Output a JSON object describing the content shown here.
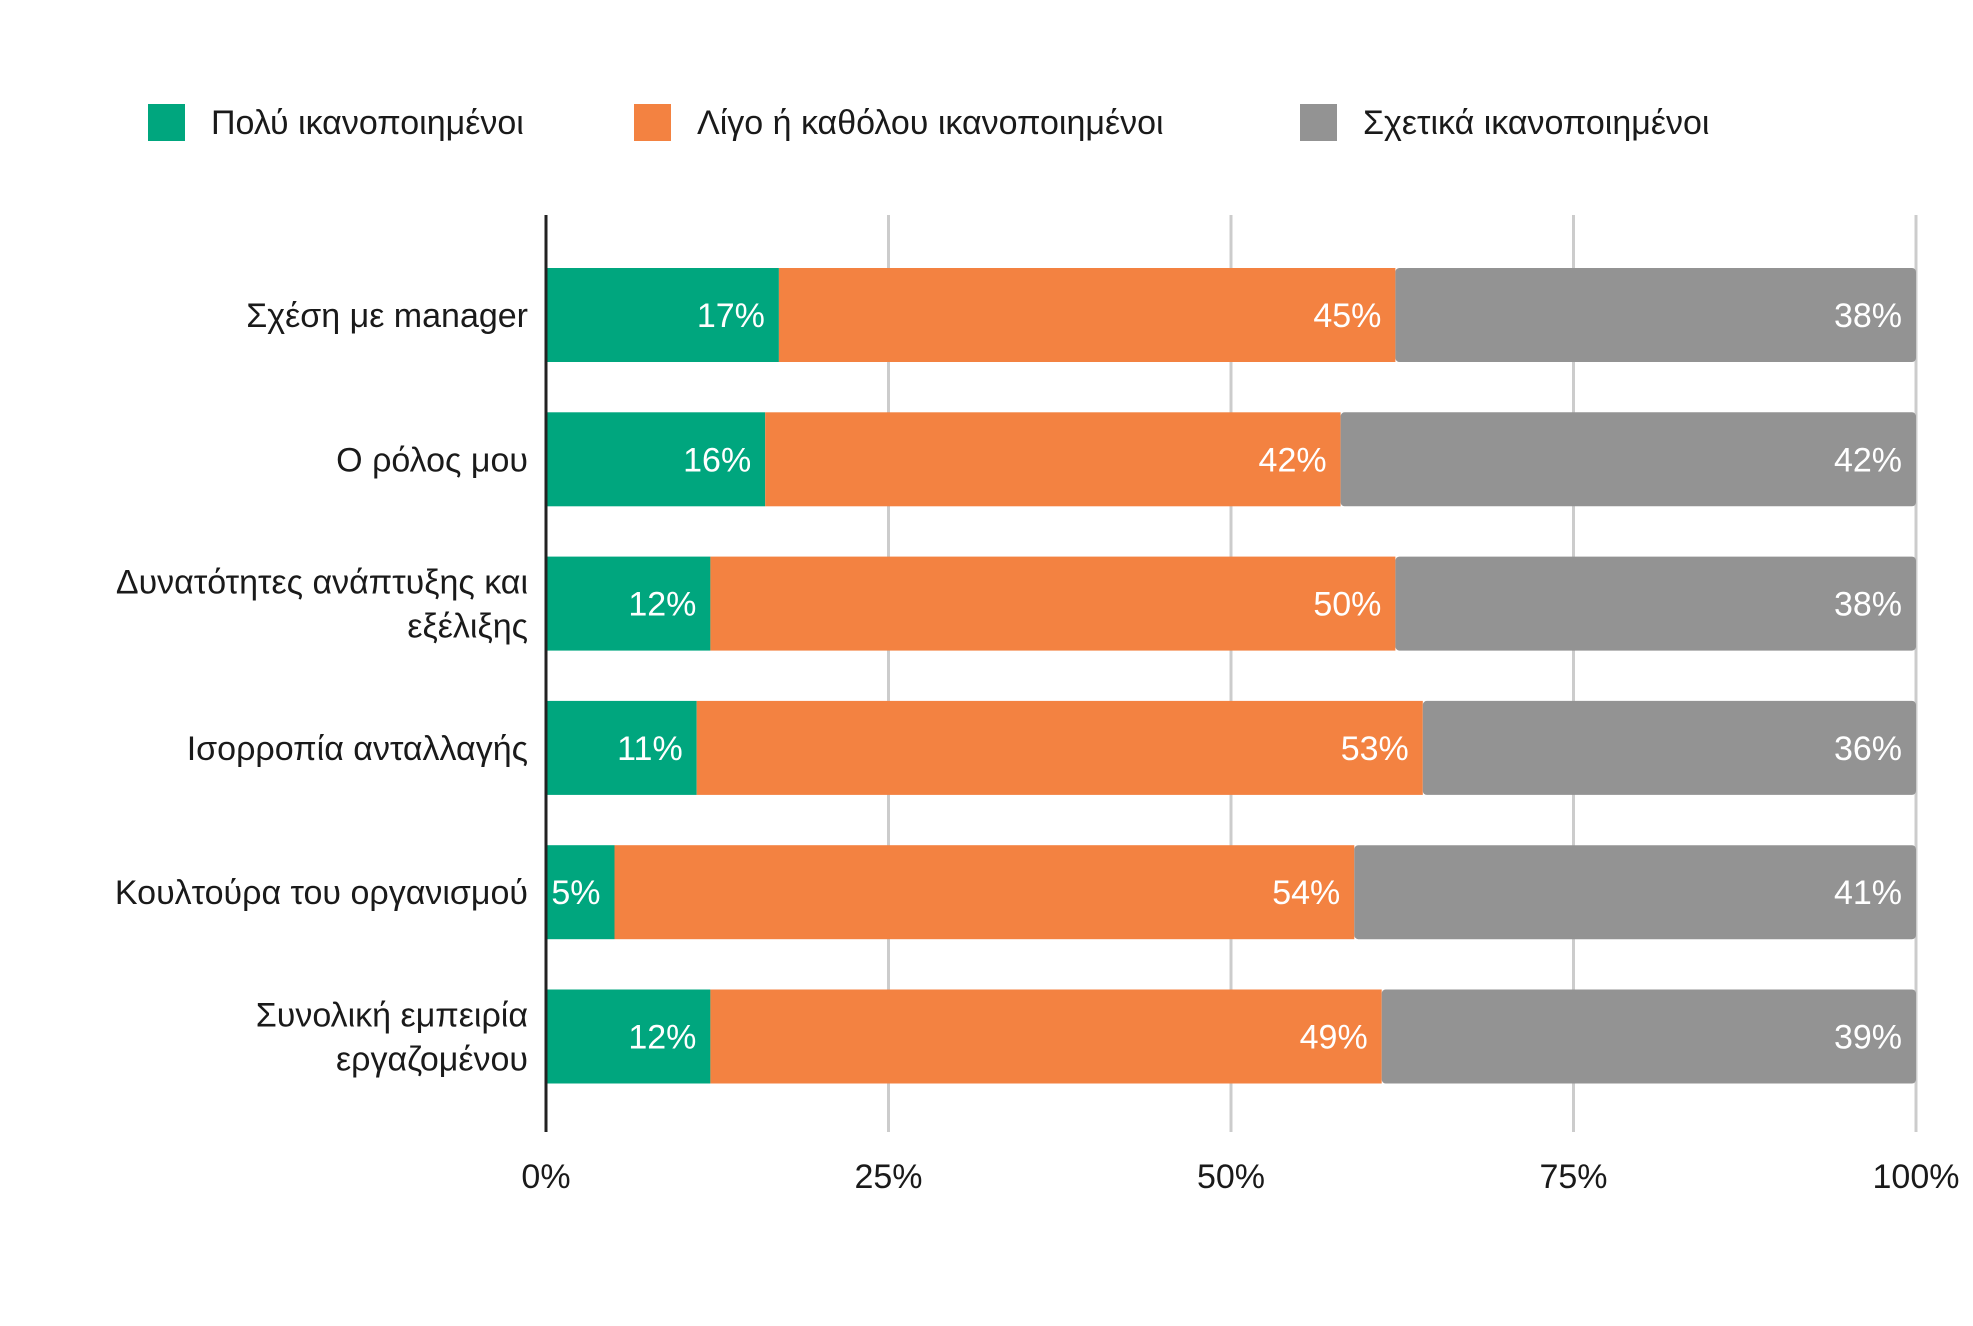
{
  "chart_data": {
    "type": "bar",
    "orientation": "horizontal",
    "stacked": true,
    "title": "",
    "xlabel": "",
    "ylabel": "",
    "xlim": [
      0,
      100
    ],
    "x_ticks": [
      {
        "value": 0,
        "label": "0%"
      },
      {
        "value": 25,
        "label": "25%"
      },
      {
        "value": 50,
        "label": "50%"
      },
      {
        "value": 75,
        "label": "75%"
      },
      {
        "value": 100,
        "label": "100%"
      }
    ],
    "grid": true,
    "legend_position": "top",
    "categories": [
      [
        "Σχέση με manager"
      ],
      [
        "Ο ρόλος μου"
      ],
      [
        "Δυνατότητες ανάπτυξης και",
        "εξέλιξης"
      ],
      [
        "Ισορροπία ανταλλαγής"
      ],
      [
        "Κουλτούρα του οργανισμού"
      ],
      [
        "Συνολική εμπειρία",
        "εργαζομένου"
      ]
    ],
    "series": [
      {
        "name": "Πολύ ικανοποιημένοι",
        "color": "#00a67e",
        "values": [
          17,
          16,
          12,
          11,
          5,
          12
        ],
        "labels": [
          "17%",
          "16%",
          "12%",
          "11%",
          "5%",
          "12%"
        ]
      },
      {
        "name": "Λίγο ή καθόλου ικανοποιημένοι",
        "color": "#f38241",
        "values": [
          45,
          42,
          50,
          53,
          54,
          49
        ],
        "labels": [
          "45%",
          "42%",
          "50%",
          "53%",
          "54%",
          "49%"
        ]
      },
      {
        "name": "Σχετικά ικανοποιημένοι",
        "color": "#939393",
        "values": [
          38,
          42,
          38,
          36,
          41,
          39
        ],
        "labels": [
          "38%",
          "42%",
          "38%",
          "36%",
          "41%",
          "39%"
        ]
      }
    ],
    "colors": {
      "grid": "#cccccc",
      "axis": "#222222",
      "tick_text": "#1a1a1a",
      "bar_label": "#ffffff"
    }
  }
}
